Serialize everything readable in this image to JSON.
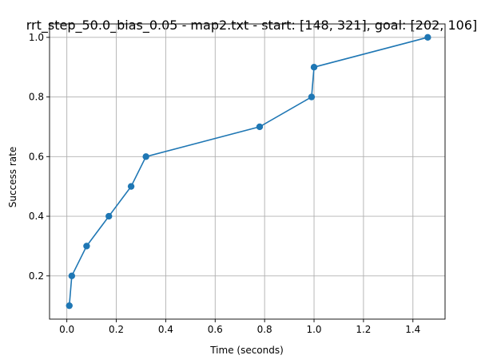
{
  "chart_data": {
    "type": "line",
    "title": "rrt_step_50.0_bias_0.05 - map2.txt - start: [148, 321], goal: [202, 106]",
    "xlabel": "Time (seconds)",
    "ylabel": "Success rate",
    "xlim": [
      -0.07,
      1.53
    ],
    "ylim": [
      0.055,
      1.045
    ],
    "xticks": [
      0.0,
      0.2,
      0.4,
      0.6,
      0.8,
      1.0,
      1.2,
      1.4
    ],
    "xtick_labels": [
      "0.0",
      "0.2",
      "0.4",
      "0.6",
      "0.8",
      "1.0",
      "1.2",
      "1.4"
    ],
    "yticks": [
      0.2,
      0.4,
      0.6,
      0.8,
      1.0
    ],
    "ytick_labels": [
      "0.2",
      "0.4",
      "0.6",
      "0.8",
      "1.0"
    ],
    "grid": true,
    "color": "#1f77b4",
    "x": [
      0.01,
      0.02,
      0.08,
      0.17,
      0.26,
      0.32,
      0.78,
      0.99,
      1.0,
      1.46
    ],
    "y": [
      0.1,
      0.2,
      0.3,
      0.4,
      0.5,
      0.6,
      0.7,
      0.8,
      0.9,
      1.0
    ]
  }
}
